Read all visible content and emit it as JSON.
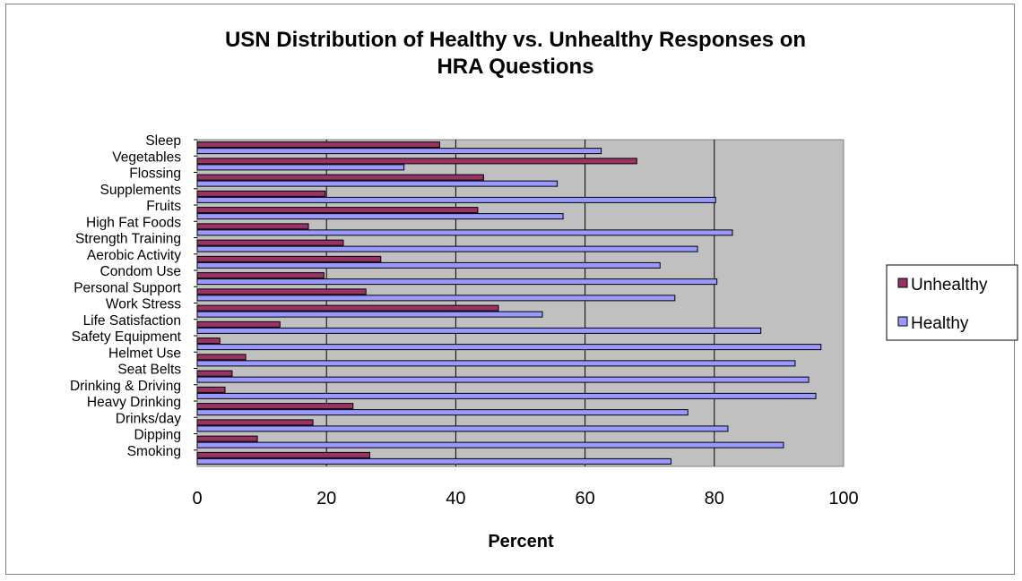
{
  "chart_data": {
    "type": "bar",
    "orientation": "horizontal",
    "title_lines": [
      "USN Distribution of Healthy vs. Unhealthy Responses on",
      "HRA Questions"
    ],
    "xlabel": "Percent",
    "ylabel": "",
    "xlim": [
      0,
      100
    ],
    "x_ticks": [
      "0",
      "20",
      "40",
      "60",
      "80",
      "100"
    ],
    "grid": "vertical major gridlines",
    "legend_position": "right",
    "categories": [
      "Sleep",
      "Vegetables",
      "Flossing",
      "Supplements",
      "Fruits",
      "High Fat Foods",
      "Strength Training",
      "Aerobic Activity",
      "Condom Use",
      "Personal Support",
      "Work Stress",
      "Life Satisfaction",
      "Safety Equipment",
      "Helmet Use",
      "Seat Belts",
      "Drinking & Driving",
      "Heavy Drinking",
      "Drinks/day",
      "Dipping",
      "Smoking"
    ],
    "series": [
      {
        "name": "Unhealthy",
        "color": "#993366",
        "values": [
          37.5,
          68,
          44.3,
          19.8,
          43.4,
          17.2,
          22.6,
          28.4,
          19.6,
          26.1,
          46.6,
          12.8,
          3.5,
          7.5,
          5.4,
          4.3,
          24.1,
          17.9,
          9.3,
          26.7
        ]
      },
      {
        "name": "Healthy",
        "color": "#9999FF",
        "values": [
          62.5,
          32,
          55.7,
          80.2,
          56.6,
          82.8,
          77.4,
          71.6,
          80.4,
          73.9,
          53.4,
          87.2,
          96.5,
          92.5,
          94.6,
          95.7,
          75.9,
          82.1,
          90.7,
          73.3
        ]
      }
    ],
    "plot_background": "#C0C0C0"
  }
}
